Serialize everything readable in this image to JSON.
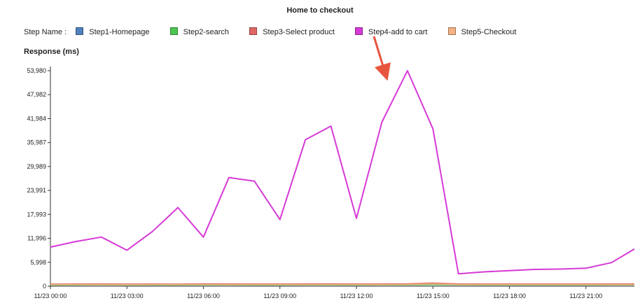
{
  "chart_data": {
    "type": "line",
    "title": "Home to checkout",
    "legend_title": "Step Name :",
    "ylabel": "Response (ms)",
    "xlabel": "",
    "ylim": [
      0,
      53980
    ],
    "yticks": [
      "0",
      "5,998",
      "11,996",
      "17,993",
      "23,991",
      "29,989",
      "35,987",
      "41,984",
      "47,982",
      "53,980"
    ],
    "ytick_values": [
      0,
      5998,
      11996,
      17993,
      23991,
      29989,
      35987,
      41984,
      47982,
      53980
    ],
    "xticks": [
      "11/23 00:00",
      "11/23 03:00",
      "11/23 06:00",
      "11/23 09:00",
      "11/23 12:00",
      "11/23 15:00",
      "11/23 18:00",
      "11/23 21:00"
    ],
    "xtick_hours": [
      0,
      3,
      6,
      9,
      12,
      15,
      18,
      21
    ],
    "x_range_hours": [
      0,
      22.9
    ],
    "legend_placement": "top-left",
    "grid": false,
    "series": [
      {
        "name": "Step1-Homepage",
        "color": "#4f81bd",
        "x": [
          0,
          1,
          2,
          3,
          4,
          5,
          6,
          7,
          8,
          9,
          10,
          11,
          12,
          13,
          14,
          15,
          16,
          17,
          18,
          19,
          20,
          21,
          22,
          22.9
        ],
        "values": [
          450,
          450,
          460,
          440,
          450,
          450,
          470,
          460,
          450,
          450,
          460,
          470,
          450,
          460,
          470,
          520,
          460,
          450,
          450,
          450,
          450,
          450,
          460,
          460
        ]
      },
      {
        "name": "Step2-search",
        "color": "#4cc552",
        "x": [
          0,
          1,
          2,
          3,
          4,
          5,
          6,
          7,
          8,
          9,
          10,
          11,
          12,
          13,
          14,
          15,
          16,
          17,
          18,
          19,
          20,
          21,
          22,
          22.9
        ],
        "values": [
          300,
          300,
          310,
          290,
          300,
          300,
          320,
          310,
          300,
          300,
          310,
          320,
          300,
          310,
          320,
          380,
          310,
          300,
          300,
          300,
          300,
          300,
          310,
          310
        ]
      },
      {
        "name": "Step3-Select product",
        "color": "#e06666",
        "x": [
          0,
          1,
          2,
          3,
          4,
          5,
          6,
          7,
          8,
          9,
          10,
          11,
          12,
          13,
          14,
          15,
          16,
          17,
          18,
          19,
          20,
          21,
          22,
          22.9
        ],
        "values": [
          550,
          560,
          570,
          540,
          560,
          550,
          600,
          580,
          560,
          560,
          580,
          600,
          560,
          580,
          600,
          800,
          580,
          560,
          560,
          560,
          560,
          560,
          580,
          580
        ]
      },
      {
        "name": "Step4-add to cart",
        "color": "#d63ad6",
        "x": [
          0,
          1,
          2,
          3,
          4,
          5,
          6,
          7,
          8,
          9,
          10,
          11,
          12,
          13,
          14,
          15,
          16,
          17,
          18,
          19,
          20,
          21,
          22,
          22.9
        ],
        "values": [
          9800,
          11200,
          12300,
          9000,
          13700,
          19700,
          12300,
          27200,
          26300,
          16700,
          36700,
          40100,
          17000,
          41100,
          53980,
          39400,
          3100,
          3600,
          3900,
          4200,
          4300,
          4500,
          5900,
          9300
        ]
      },
      {
        "name": "Step5-Checkout",
        "color": "#f4b183",
        "x": [
          0,
          1,
          2,
          3,
          4,
          5,
          6,
          7,
          8,
          9,
          10,
          11,
          12,
          13,
          14,
          15,
          16,
          17,
          18,
          19,
          20,
          21,
          22,
          22.9
        ],
        "values": [
          400,
          400,
          410,
          390,
          400,
          400,
          420,
          410,
          400,
          400,
          410,
          420,
          400,
          410,
          420,
          600,
          410,
          400,
          400,
          400,
          400,
          400,
          410,
          410
        ]
      }
    ]
  }
}
